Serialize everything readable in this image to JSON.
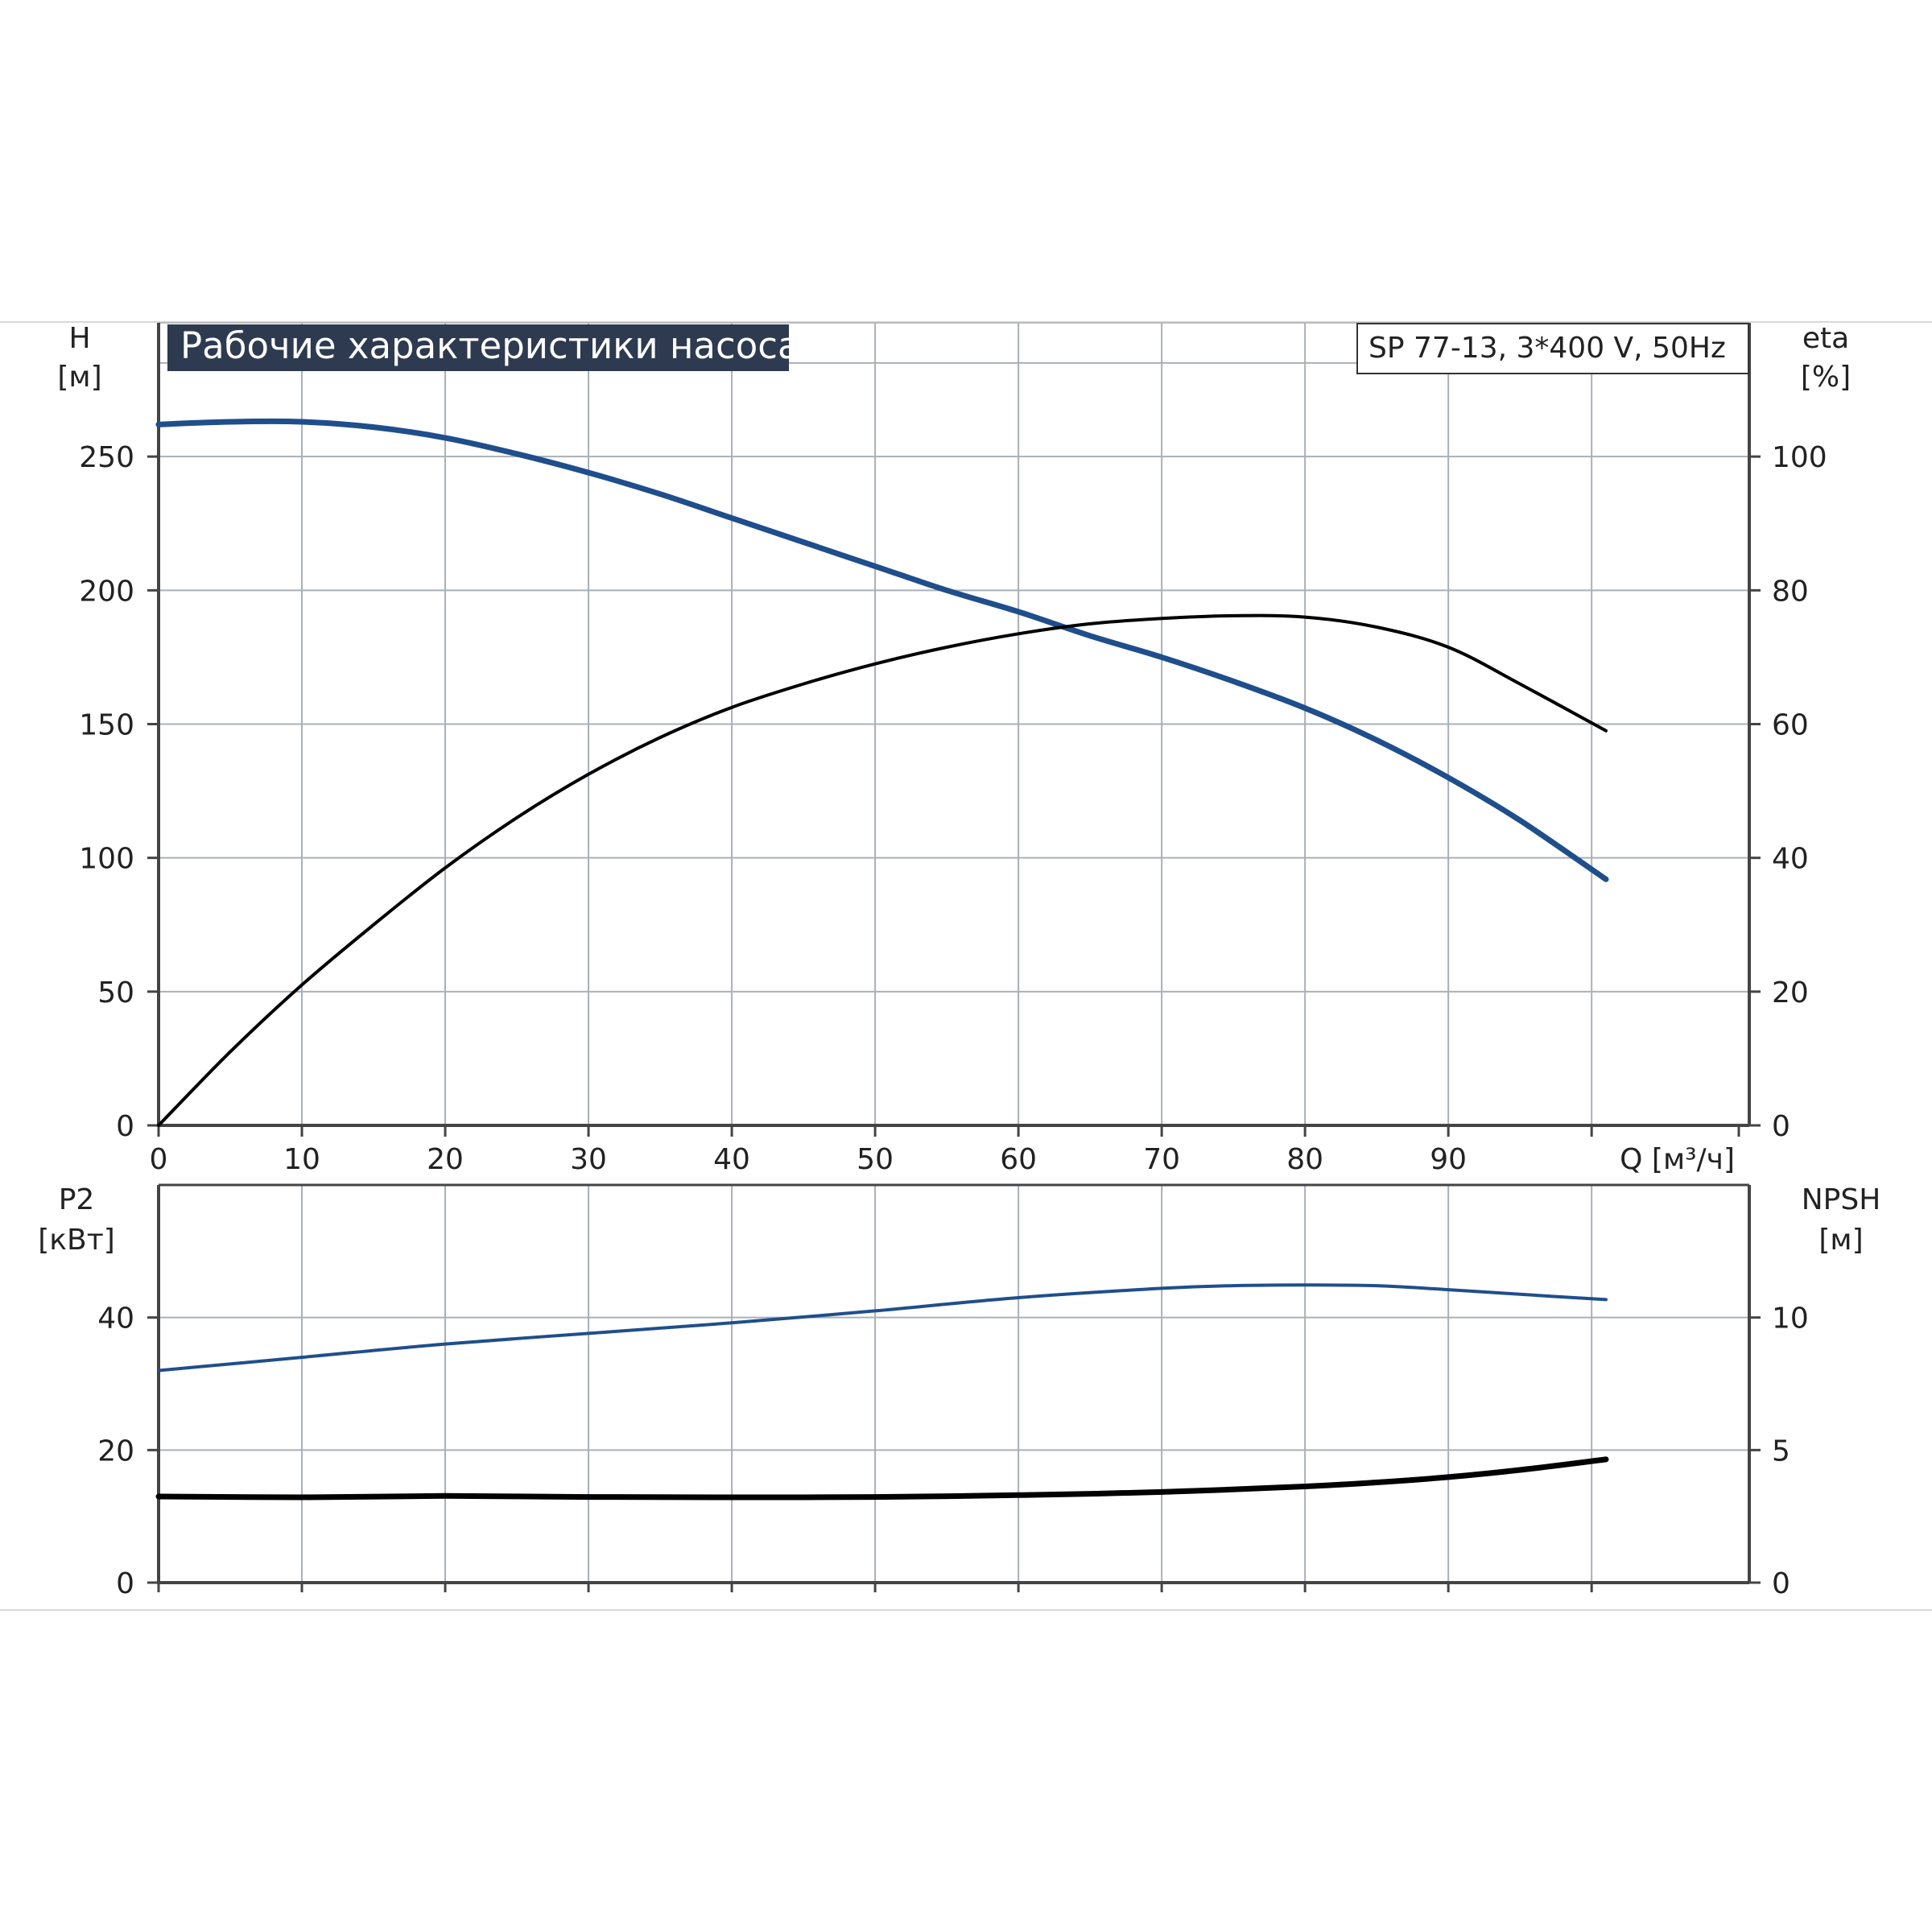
{
  "chart_data": [
    {
      "type": "line",
      "title": "Рабочие характеристики насоса",
      "subtitle": "SP 77-13, 3*400 V, 50Hz",
      "xlabel": "Q [м³/ч]",
      "xticks": [
        0,
        10,
        20,
        30,
        40,
        50,
        60,
        70,
        80,
        90
      ],
      "xlim": [
        0,
        111
      ],
      "ylabel": {
        "name": "H",
        "unit": "[м]"
      },
      "ylim": [
        0,
        300
      ],
      "yticks": [
        0,
        50,
        100,
        150,
        200,
        250
      ],
      "y2label": {
        "name": "eta",
        "unit": "[%]"
      },
      "y2lim": [
        0,
        120
      ],
      "y2ticks": [
        0,
        20,
        40,
        60,
        80,
        100
      ],
      "grid": true,
      "series": [
        {
          "axis": "left",
          "color": "#1f4e8c",
          "x": [
            0,
            5,
            10,
            15,
            20,
            25,
            30,
            35,
            40,
            45,
            50,
            55,
            60,
            65,
            70,
            75,
            80,
            85,
            90,
            95,
            101
          ],
          "values": [
            262,
            263,
            263,
            261,
            257,
            251,
            244,
            236,
            227,
            218,
            209,
            200,
            192,
            183,
            175,
            166,
            156,
            144,
            130,
            114,
            92
          ]
        },
        {
          "axis": "right",
          "color": "#000000",
          "x": [
            0,
            5,
            10,
            15,
            20,
            25,
            30,
            35,
            40,
            45,
            50,
            55,
            60,
            65,
            70,
            75,
            80,
            85,
            90,
            95,
            101
          ],
          "values": [
            0,
            11,
            21,
            30,
            38.5,
            46,
            52.5,
            58,
            62.5,
            66,
            69,
            71.5,
            73.5,
            75,
            75.8,
            76.2,
            76,
            74.5,
            71.5,
            66,
            59
          ]
        }
      ]
    },
    {
      "type": "line",
      "xlim": [
        0,
        111
      ],
      "ylabel": {
        "name": "P2",
        "unit": "[кВт]"
      },
      "ylim": [
        0,
        60
      ],
      "yticks": [
        0,
        20,
        40
      ],
      "y2label": {
        "name": "NPSH",
        "unit": "[м]"
      },
      "y2lim": [
        0,
        15
      ],
      "y2ticks": [
        0,
        5,
        10
      ],
      "grid": true,
      "series": [
        {
          "axis": "left",
          "color": "#1f4e8c",
          "x": [
            0,
            10,
            20,
            30,
            40,
            50,
            60,
            70,
            75,
            80,
            85,
            90,
            95,
            101
          ],
          "values": [
            32,
            34,
            36,
            37.6,
            39.2,
            41,
            43,
            44.4,
            44.8,
            44.9,
            44.8,
            44.2,
            43.5,
            42.7
          ]
        },
        {
          "axis": "right",
          "color": "#000000",
          "x": [
            0,
            10,
            20,
            30,
            40,
            50,
            60,
            70,
            80,
            85,
            90,
            95,
            101
          ],
          "values": [
            3.25,
            3.22,
            3.27,
            3.23,
            3.22,
            3.23,
            3.3,
            3.42,
            3.63,
            3.78,
            3.98,
            4.25,
            4.65
          ]
        }
      ]
    }
  ]
}
